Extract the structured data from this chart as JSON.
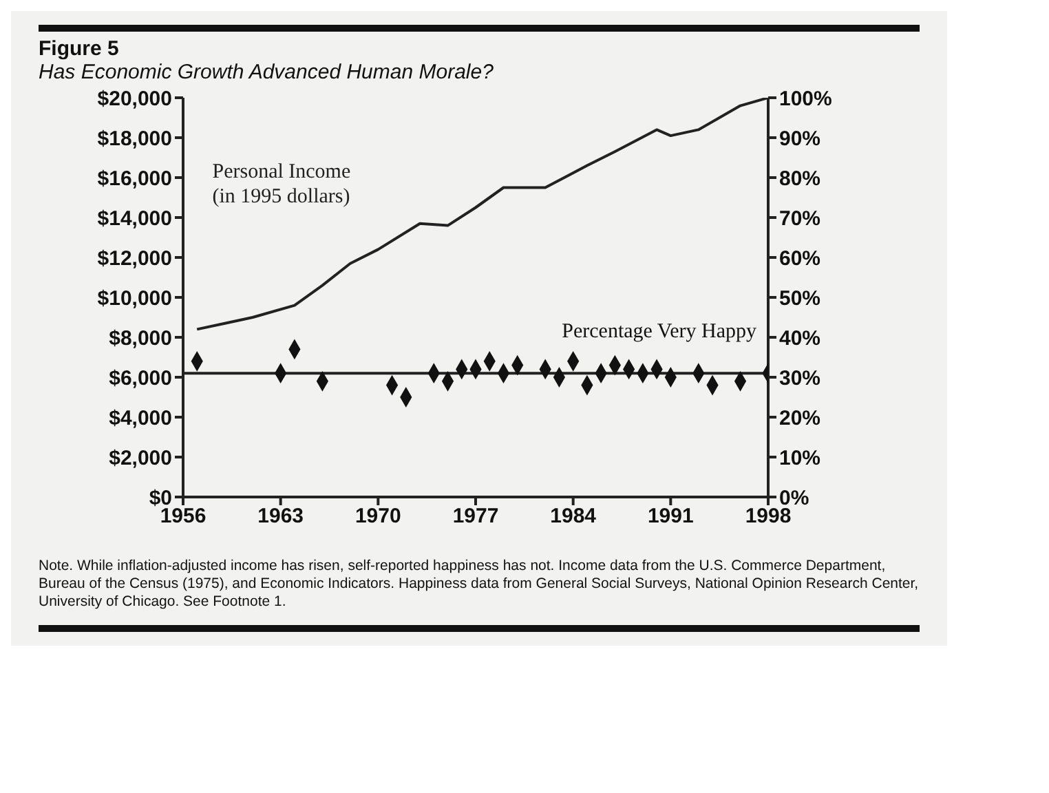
{
  "chart_data": {
    "type": "line",
    "title": "Figure 5",
    "subtitle": "Has Economic Growth Advanced Human Morale?",
    "xlim": [
      1956,
      1998
    ],
    "xticks": [
      1956,
      1963,
      1970,
      1977,
      1984,
      1991,
      1998
    ],
    "ylim": [
      0,
      20000
    ],
    "yticks": [
      {
        "value": 0,
        "label": "$0"
      },
      {
        "value": 2000,
        "label": "$2,000"
      },
      {
        "value": 4000,
        "label": "$4,000"
      },
      {
        "value": 6000,
        "label": "$6,000"
      },
      {
        "value": 8000,
        "label": "$8,000"
      },
      {
        "value": 10000,
        "label": "$10,000"
      },
      {
        "value": 12000,
        "label": "$12,000"
      },
      {
        "value": 14000,
        "label": "$14,000"
      },
      {
        "value": 16000,
        "label": "$16,000"
      },
      {
        "value": 18000,
        "label": "$18,000"
      },
      {
        "value": 20000,
        "label": "$20,000"
      }
    ],
    "y2lim": [
      0,
      100
    ],
    "y2ticks": [
      {
        "value": 0,
        "label": "0%"
      },
      {
        "value": 10,
        "label": "10%"
      },
      {
        "value": 20,
        "label": "20%"
      },
      {
        "value": 30,
        "label": "30%"
      },
      {
        "value": 40,
        "label": "40%"
      },
      {
        "value": 50,
        "label": "50%"
      },
      {
        "value": 60,
        "label": "60%"
      },
      {
        "value": 70,
        "label": "70%"
      },
      {
        "value": 80,
        "label": "80%"
      },
      {
        "value": 90,
        "label": "90%"
      },
      {
        "value": 100,
        "label": "100%"
      }
    ],
    "grid": false,
    "legend": false,
    "series": [
      {
        "name": "Personal Income\n(in 1995 dollars)",
        "color": "#222222",
        "marker": "none",
        "x": [
          1957,
          1959,
          1961,
          1964,
          1966,
          1968,
          1970,
          1973,
          1975,
          1977,
          1979,
          1982,
          1985,
          1987,
          1990,
          1991,
          1993,
          1996,
          1998
        ],
        "values": [
          8400,
          8700,
          9000,
          9600,
          10600,
          11700,
          12400,
          13700,
          13600,
          14500,
          15500,
          15500,
          16600,
          17300,
          18400,
          18100,
          18400,
          19600,
          20000
        ]
      },
      {
        "name": "Percentage Very Happy",
        "type": "scatter",
        "axis": "y2",
        "color": "#111111",
        "marker": "diamond",
        "x": [
          1957,
          1963,
          1964,
          1966,
          1971,
          1972,
          1974,
          1975,
          1976,
          1977,
          1978,
          1979,
          1980,
          1982,
          1983,
          1984,
          1985,
          1986,
          1987,
          1988,
          1989,
          1990,
          1991,
          1993,
          1994,
          1996,
          1998
        ],
        "values": [
          34,
          31,
          37,
          29,
          28,
          25,
          31,
          29,
          32,
          32,
          34,
          31,
          33,
          32,
          30,
          34,
          28,
          31,
          33,
          32,
          31,
          32,
          30,
          31,
          28,
          29,
          31
        ]
      }
    ],
    "ref_lines": [
      {
        "axis": "y2",
        "value": 31,
        "color": "#222222"
      }
    ],
    "annotations": [
      "Note. While inflation-adjusted income has risen, self-reported happiness has not. Income data from the U.S. Commerce Department, Bureau of the Census (1975), and Economic Indicators. Happiness data from General Social Surveys, National Opinion Research Center, University of Chicago. See Footnote 1."
    ]
  }
}
